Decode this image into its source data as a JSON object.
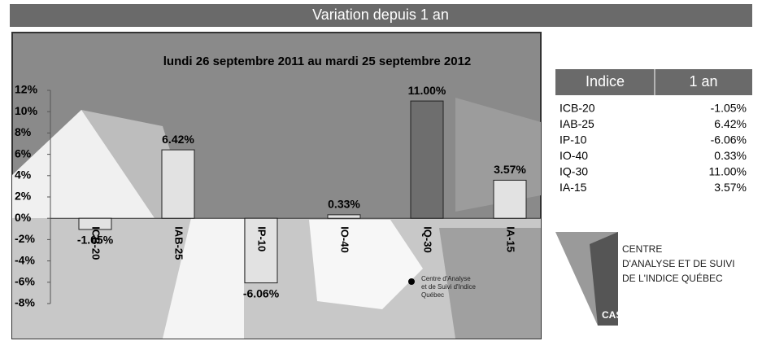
{
  "banner": "Variation depuis 1 an",
  "chart_data": {
    "type": "bar",
    "title": "lundi 26 septembre 2011 au mardi 25 septembre 2012",
    "categories": [
      "ICB-20",
      "IAB-25",
      "IP-10",
      "IO-40",
      "IQ-30",
      "IA-15"
    ],
    "values": [
      -1.05,
      6.42,
      -6.06,
      0.33,
      11.0,
      3.57
    ],
    "value_labels": [
      "-1.05%",
      "6.42%",
      "-6.06%",
      "0.33%",
      "11.00%",
      "3.57%"
    ],
    "colors": [
      "#e2e2e2",
      "#e2e2e2",
      "#e2e2e2",
      "#e2e2e2",
      "#6e6e6e",
      "#e2e2e2"
    ],
    "ylim": [
      -8,
      12
    ],
    "yticks": [
      {
        "value": -8,
        "label": "-8%"
      },
      {
        "value": -6,
        "label": "-6%"
      },
      {
        "value": -4,
        "label": "-4%"
      },
      {
        "value": -2,
        "label": "-2%"
      },
      {
        "value": 0,
        "label": "0%"
      },
      {
        "value": 2,
        "label": "2%"
      },
      {
        "value": 4,
        "label": "4%"
      },
      {
        "value": 6,
        "label": "6%"
      },
      {
        "value": 8,
        "label": "8%"
      },
      {
        "value": 10,
        "label": "10%"
      },
      {
        "value": 12,
        "label": "12%"
      }
    ]
  },
  "map_note": [
    "Centre d'Analyse",
    "et de Suivi d'Indice",
    "Québec"
  ],
  "table": {
    "header": [
      "Indice",
      "1 an"
    ],
    "rows": [
      [
        "ICB-20",
        "-1.05%"
      ],
      [
        "IAB-25",
        "6.42%"
      ],
      [
        "IP-10",
        "-6.06%"
      ],
      [
        "IO-40",
        "0.33%"
      ],
      [
        "IQ-30",
        "11.00%"
      ],
      [
        "IA-15",
        "3.57%"
      ]
    ]
  },
  "logo": {
    "lines": [
      "CENTRE",
      "D'ANALYSE ET DE SUIVI",
      "DE L'INDICE QUÉBEC"
    ],
    "mark": "CASIQ"
  }
}
